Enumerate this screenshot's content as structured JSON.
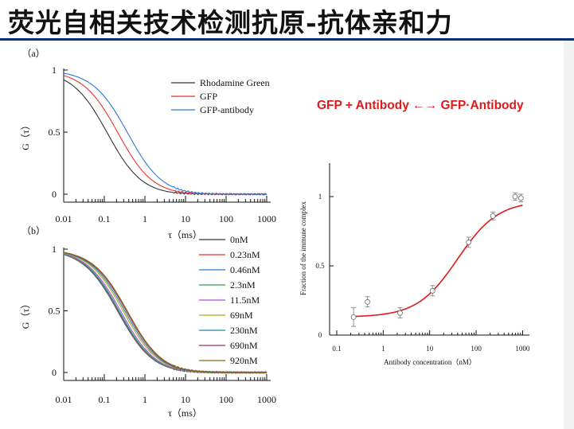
{
  "slide_title": "荧光自相关技术检测抗原-抗体亲和力",
  "equation": "GFP + Antibody ←→ GFP·Antibody",
  "chart_data": [
    {
      "type": "line",
      "panel_label": "（a）",
      "xlabel": "τ（ms）",
      "ylabel": "G（τ）",
      "x_scale": "log",
      "xlim": [
        0.01,
        1000
      ],
      "ylim": [
        0,
        1
      ],
      "x_ticks": [
        "0.01",
        "0.1",
        "1",
        "10",
        "100",
        "1000"
      ],
      "y_ticks": [
        "0",
        "0.5",
        "1"
      ],
      "legend_position": "top-right",
      "series": [
        {
          "name": "Rhodamine Green",
          "color": "#333333",
          "tau_d": 0.12
        },
        {
          "name": "GFP",
          "color": "#e8332e",
          "tau_d": 0.22
        },
        {
          "name": "GFP-antibody",
          "color": "#2f78d8",
          "tau_d": 0.38
        }
      ]
    },
    {
      "type": "line",
      "panel_label": "（b）",
      "xlabel": "τ（ms）",
      "ylabel": "G（τ）",
      "x_scale": "log",
      "xlim": [
        0.01,
        1000
      ],
      "ylim": [
        0,
        1
      ],
      "x_ticks": [
        "0.01",
        "0.1",
        "1",
        "10",
        "100",
        "1000"
      ],
      "y_ticks": [
        "0",
        "0.5",
        "1"
      ],
      "legend_position": "top-right",
      "series": [
        {
          "name": "0nM",
          "color": "#333333",
          "tau_d": 0.22
        },
        {
          "name": "0.23nM",
          "color": "#e8332e",
          "tau_d": 0.225
        },
        {
          "name": "0.46nM",
          "color": "#2f78d8",
          "tau_d": 0.23
        },
        {
          "name": "2.3nM",
          "color": "#2e9e4f",
          "tau_d": 0.24
        },
        {
          "name": "11.5nM",
          "color": "#b04fd8",
          "tau_d": 0.26
        },
        {
          "name": "69nM",
          "color": "#b5a520",
          "tau_d": 0.3
        },
        {
          "name": "230nM",
          "color": "#1f8aa0",
          "tau_d": 0.33
        },
        {
          "name": "690nM",
          "color": "#a0306a",
          "tau_d": 0.36
        },
        {
          "name": "920nM",
          "color": "#8a6a10",
          "tau_d": 0.38
        }
      ]
    },
    {
      "type": "scatter",
      "xlabel": "Antibody concentration（nM）",
      "ylabel": "Fraction of the immune complex",
      "x_scale": "log",
      "xlim": [
        0.1,
        1000
      ],
      "ylim": [
        0,
        1.2
      ],
      "x_ticks": [
        "0.1",
        "1",
        "10",
        "100",
        "1000"
      ],
      "y_ticks": [
        "0",
        "0.5",
        "1"
      ],
      "points": [
        {
          "x": 0.23,
          "y": 0.13,
          "err": 0.05
        },
        {
          "x": 0.46,
          "y": 0.24,
          "err": 0.02
        },
        {
          "x": 2.3,
          "y": 0.16,
          "err": 0.02
        },
        {
          "x": 11.5,
          "y": 0.32,
          "err": 0.02
        },
        {
          "x": 69,
          "y": 0.67,
          "err": 0.02
        },
        {
          "x": 230,
          "y": 0.86,
          "err": 0.01
        },
        {
          "x": 690,
          "y": 1.0,
          "err": 0.01
        },
        {
          "x": 920,
          "y": 0.99,
          "err": 0.01
        }
      ],
      "fit_color": "#e01a1a",
      "fit": {
        "bottom": 0.13,
        "top": 0.97,
        "kd": 40,
        "hill": 1.0
      }
    }
  ]
}
